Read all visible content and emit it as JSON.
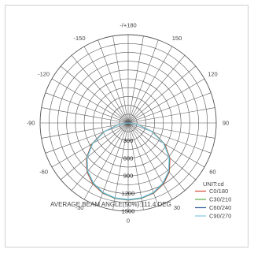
{
  "chart_data": {
    "type": "polar",
    "title": "",
    "angle_labels": [
      "-/+180",
      "-150",
      "150",
      "-120",
      "120",
      "-90",
      "90",
      "-60",
      "60",
      "-30",
      "30",
      "0"
    ],
    "angle_values": [
      180,
      -150,
      150,
      -120,
      120,
      -90,
      90,
      -60,
      60,
      -30,
      30,
      0
    ],
    "radial_ticks": [
      300,
      600,
      900,
      1200,
      1500
    ],
    "radial_tick_labels": [
      "300",
      "600",
      "900",
      "1200",
      "1500"
    ],
    "rmax": 1500,
    "unit_label": "UNIT:cd",
    "footer": "AVERAGE BEAM ANGLE(50%):111.4 DEG",
    "grid": true,
    "legend_position": "bottom-right",
    "series": [
      {
        "name": "C0/180",
        "color": "#d84a3a",
        "angles": [
          -90,
          -85,
          -80,
          -70,
          -60,
          -50,
          -40,
          -30,
          -20,
          -10,
          0,
          10,
          20,
          30,
          40,
          50,
          60,
          70,
          80,
          85,
          90
        ],
        "values": [
          0,
          60,
          180,
          450,
          720,
          930,
          1090,
          1200,
          1270,
          1300,
          1310,
          1300,
          1270,
          1200,
          1090,
          930,
          720,
          450,
          180,
          60,
          0
        ]
      },
      {
        "name": "C30/210",
        "color": "#5aaa4a",
        "angles": [
          -90,
          -85,
          -80,
          -70,
          -60,
          -50,
          -40,
          -30,
          -20,
          -10,
          0,
          10,
          20,
          30,
          40,
          50,
          60,
          70,
          80,
          85,
          90
        ],
        "values": [
          0,
          60,
          175,
          440,
          710,
          920,
          1080,
          1190,
          1265,
          1300,
          1310,
          1300,
          1265,
          1190,
          1080,
          920,
          710,
          440,
          175,
          60,
          0
        ]
      },
      {
        "name": "C60/240",
        "color": "#2d5a9c",
        "angles": [
          -90,
          -85,
          -80,
          -70,
          -60,
          -50,
          -40,
          -30,
          -20,
          -10,
          0,
          10,
          20,
          30,
          40,
          50,
          60,
          70,
          80,
          85,
          90
        ],
        "values": [
          0,
          55,
          170,
          430,
          700,
          915,
          1075,
          1185,
          1260,
          1295,
          1305,
          1295,
          1260,
          1185,
          1075,
          915,
          700,
          430,
          170,
          55,
          0
        ]
      },
      {
        "name": "C90/270",
        "color": "#7ec8e0",
        "angles": [
          -90,
          -85,
          -80,
          -70,
          -60,
          -50,
          -40,
          -30,
          -20,
          -10,
          0,
          10,
          20,
          30,
          40,
          50,
          60,
          70,
          80,
          85,
          90
        ],
        "values": [
          0,
          55,
          170,
          425,
          695,
          910,
          1070,
          1180,
          1255,
          1290,
          1300,
          1290,
          1255,
          1180,
          1070,
          910,
          695,
          425,
          170,
          55,
          0
        ]
      }
    ]
  }
}
